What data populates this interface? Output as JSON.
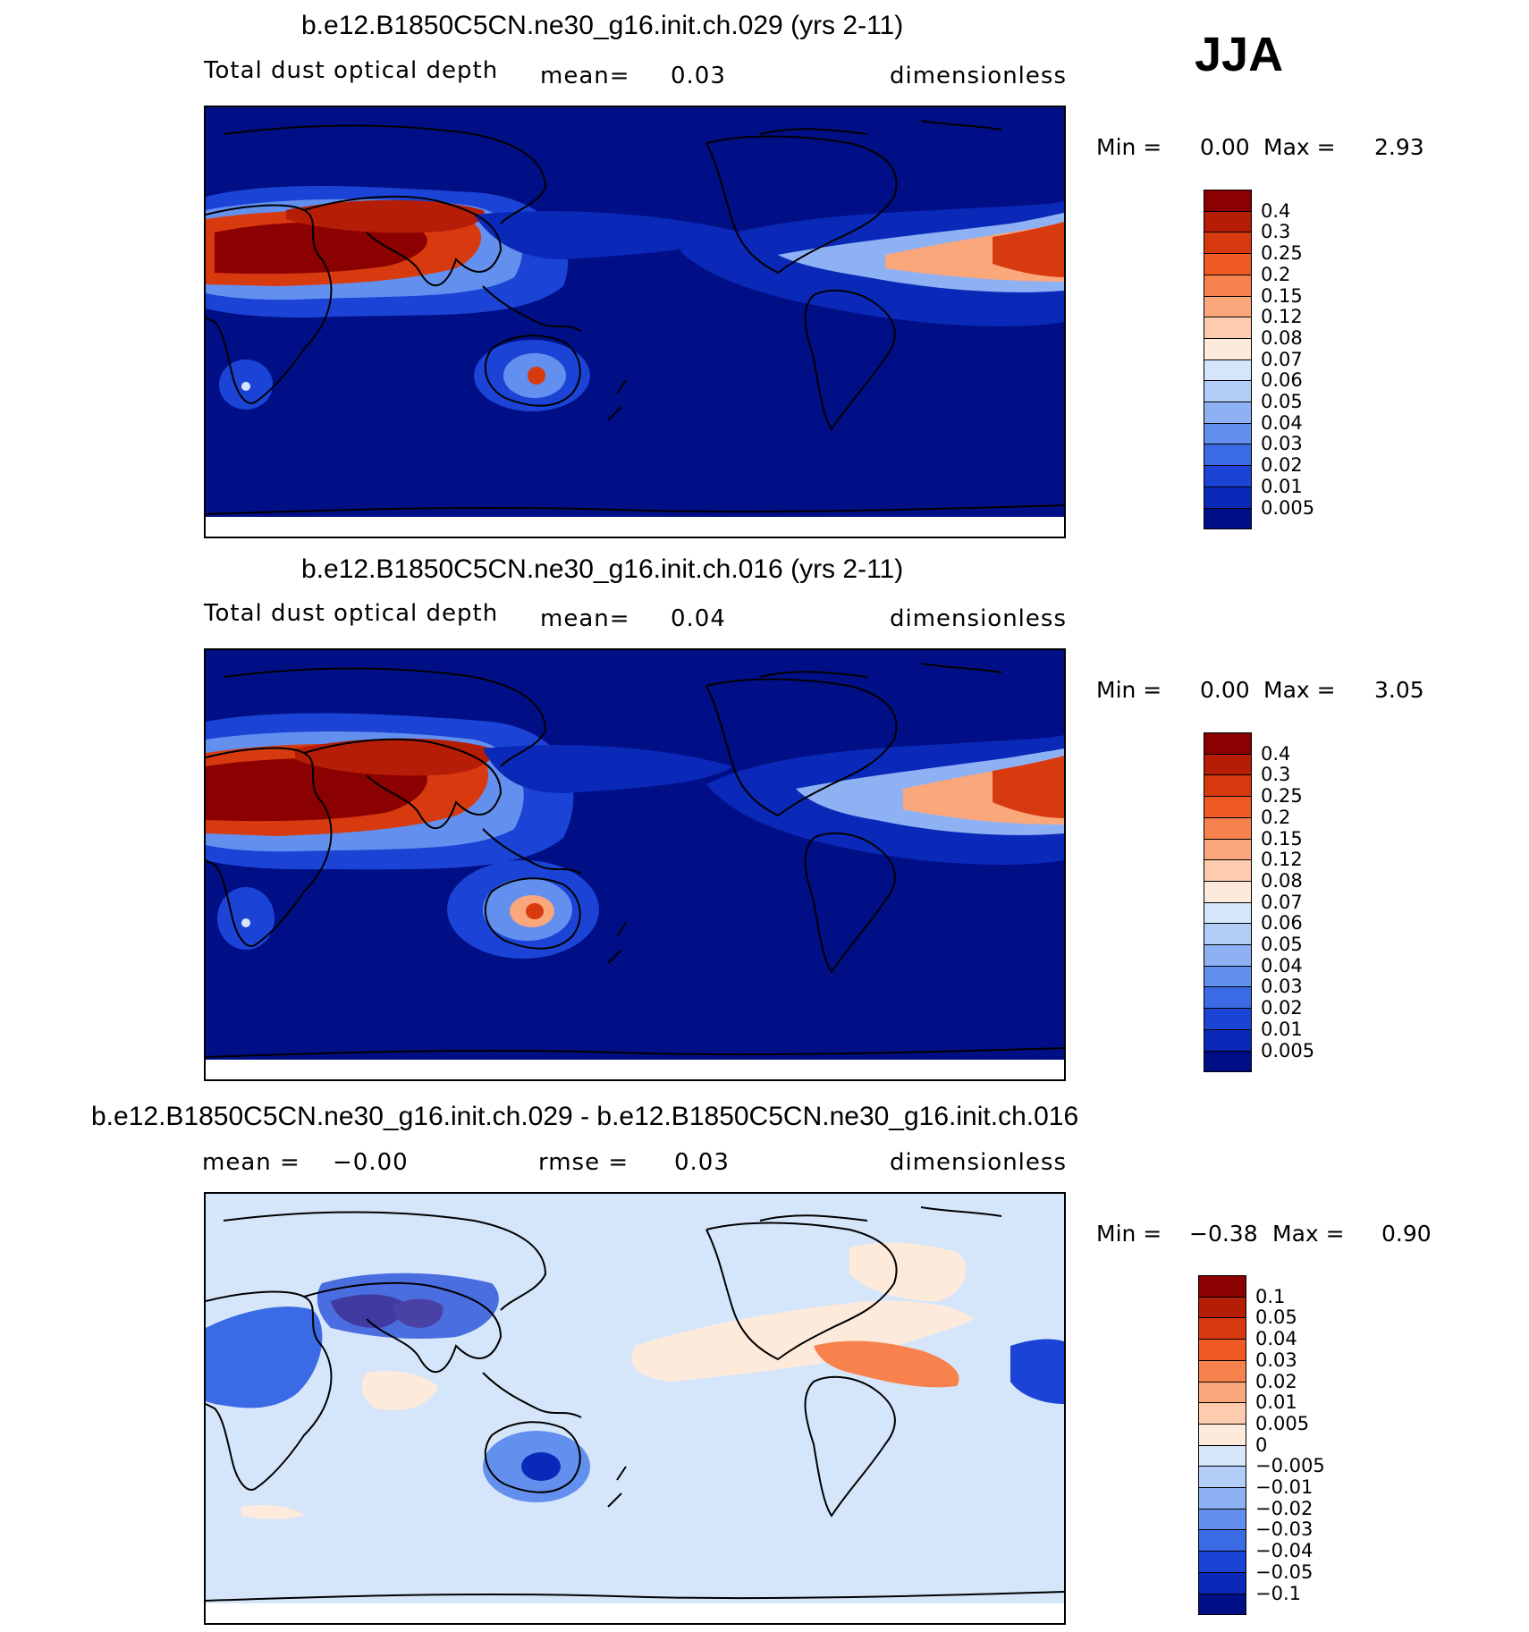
{
  "season": "JJA",
  "panels": [
    {
      "title": "b.e12.B1850C5CN.ne30_g16.init.ch.029 (yrs 2-11)",
      "left_label": "Total dust optical depth",
      "mean_label": "mean=",
      "mean_value": "0.03",
      "units": "dimensionless",
      "min_label": "Min =",
      "min_value": "0.00",
      "max_label": "Max =",
      "max_value": "2.93",
      "levels": [
        "0.4",
        "0.3",
        "0.25",
        "0.2",
        "0.15",
        "0.12",
        "0.08",
        "0.07",
        "0.06",
        "0.05",
        "0.04",
        "0.03",
        "0.02",
        "0.01",
        "0.005"
      ],
      "colors": [
        "#8b0000",
        "#b51d06",
        "#d83a10",
        "#ef5a22",
        "#f7824d",
        "#fba77c",
        "#fdcbad",
        "#feeadb",
        "#d6e6fa",
        "#b2cdf7",
        "#8eb1f3",
        "#6390ee",
        "#3b6ae5",
        "#1b44d6",
        "#0b29b8",
        "#010f86"
      ]
    },
    {
      "title": "b.e12.B1850C5CN.ne30_g16.init.ch.016 (yrs 2-11)",
      "left_label": "Total dust optical depth",
      "mean_label": "mean=",
      "mean_value": "0.04",
      "units": "dimensionless",
      "min_label": "Min =",
      "min_value": "0.00",
      "max_label": "Max =",
      "max_value": "3.05",
      "levels": [
        "0.4",
        "0.3",
        "0.25",
        "0.2",
        "0.15",
        "0.12",
        "0.08",
        "0.07",
        "0.06",
        "0.05",
        "0.04",
        "0.03",
        "0.02",
        "0.01",
        "0.005"
      ],
      "colors": [
        "#8b0000",
        "#b51d06",
        "#d83a10",
        "#ef5a22",
        "#f7824d",
        "#fba77c",
        "#fdcbad",
        "#feeadb",
        "#d6e6fa",
        "#b2cdf7",
        "#8eb1f3",
        "#6390ee",
        "#3b6ae5",
        "#1b44d6",
        "#0b29b8",
        "#010f86"
      ]
    },
    {
      "title": "b.e12.B1850C5CN.ne30_g16.init.ch.029 - b.e12.B1850C5CN.ne30_g16.init.ch.016",
      "mean_label": "mean =",
      "mean_value": "−0.00",
      "rmse_label": "rmse =",
      "rmse_value": "0.03",
      "units": "dimensionless",
      "min_label": "Min =",
      "min_value": "−0.38",
      "max_label": "Max =",
      "max_value": "0.90",
      "levels": [
        "0.1",
        "0.05",
        "0.04",
        "0.03",
        "0.02",
        "0.01",
        "0.005",
        "0",
        "−0.005",
        "−0.01",
        "−0.02",
        "−0.03",
        "−0.04",
        "−0.05",
        "−0.1"
      ],
      "colors": [
        "#8b0000",
        "#b51d06",
        "#d83a10",
        "#ef5a22",
        "#f7824d",
        "#fba77c",
        "#fdcbad",
        "#feeadb",
        "#d6e6fa",
        "#b2cdf7",
        "#8eb1f3",
        "#6390ee",
        "#3b6ae5",
        "#1b44d6",
        "#0b29b8",
        "#010f86"
      ]
    }
  ]
}
